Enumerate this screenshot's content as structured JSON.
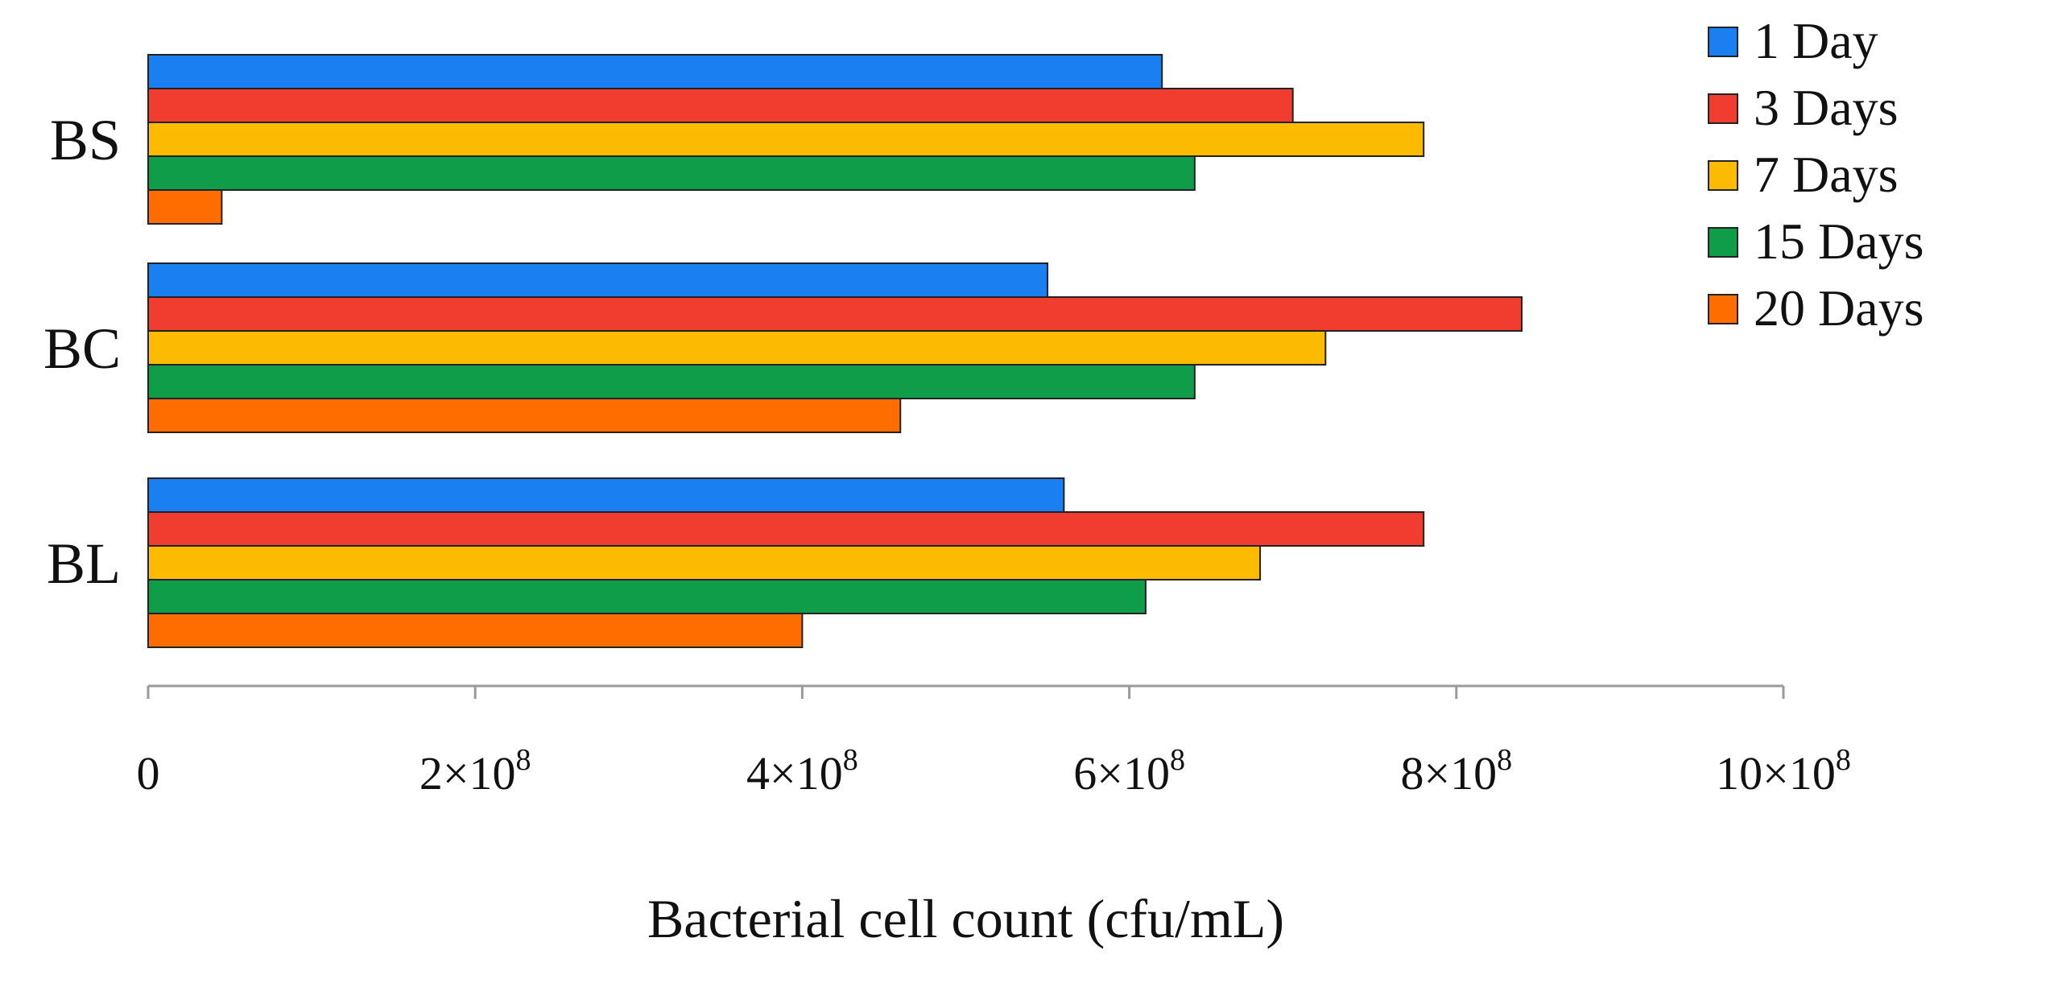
{
  "chart_data": {
    "type": "bar",
    "orientation": "horizontal",
    "title": "",
    "xlabel": "Bacterial cell count (cfu/mL)",
    "ylabel": "",
    "xlim": [
      0,
      1000000000
    ],
    "x_ticks": [
      {
        "value": 0,
        "label": "0"
      },
      {
        "value": 200000000,
        "label": "2×10",
        "exp": "8"
      },
      {
        "value": 400000000,
        "label": "4×10",
        "exp": "8"
      },
      {
        "value": 600000000,
        "label": "6×10",
        "exp": "8"
      },
      {
        "value": 800000000,
        "label": "8×10",
        "exp": "8"
      },
      {
        "value": 1000000000,
        "label": "10×10",
        "exp": "8"
      }
    ],
    "categories": [
      "BS",
      "BC",
      "BL"
    ],
    "series": [
      {
        "name": "1 Day",
        "color": "#1a7ff0",
        "values": [
          620000000,
          550000000,
          560000000
        ]
      },
      {
        "name": "3 Days",
        "color": "#f13c30",
        "values": [
          700000000,
          840000000,
          780000000
        ]
      },
      {
        "name": "7 Days",
        "color": "#fdbb00",
        "values": [
          780000000,
          720000000,
          680000000
        ]
      },
      {
        "name": "15 Days",
        "color": "#0f9d4a",
        "values": [
          640000000,
          640000000,
          610000000
        ]
      },
      {
        "name": "20 Days",
        "color": "#ff6d00",
        "values": [
          45000000,
          460000000,
          400000000
        ]
      }
    ],
    "grid": false,
    "legend_position": "top-right"
  }
}
